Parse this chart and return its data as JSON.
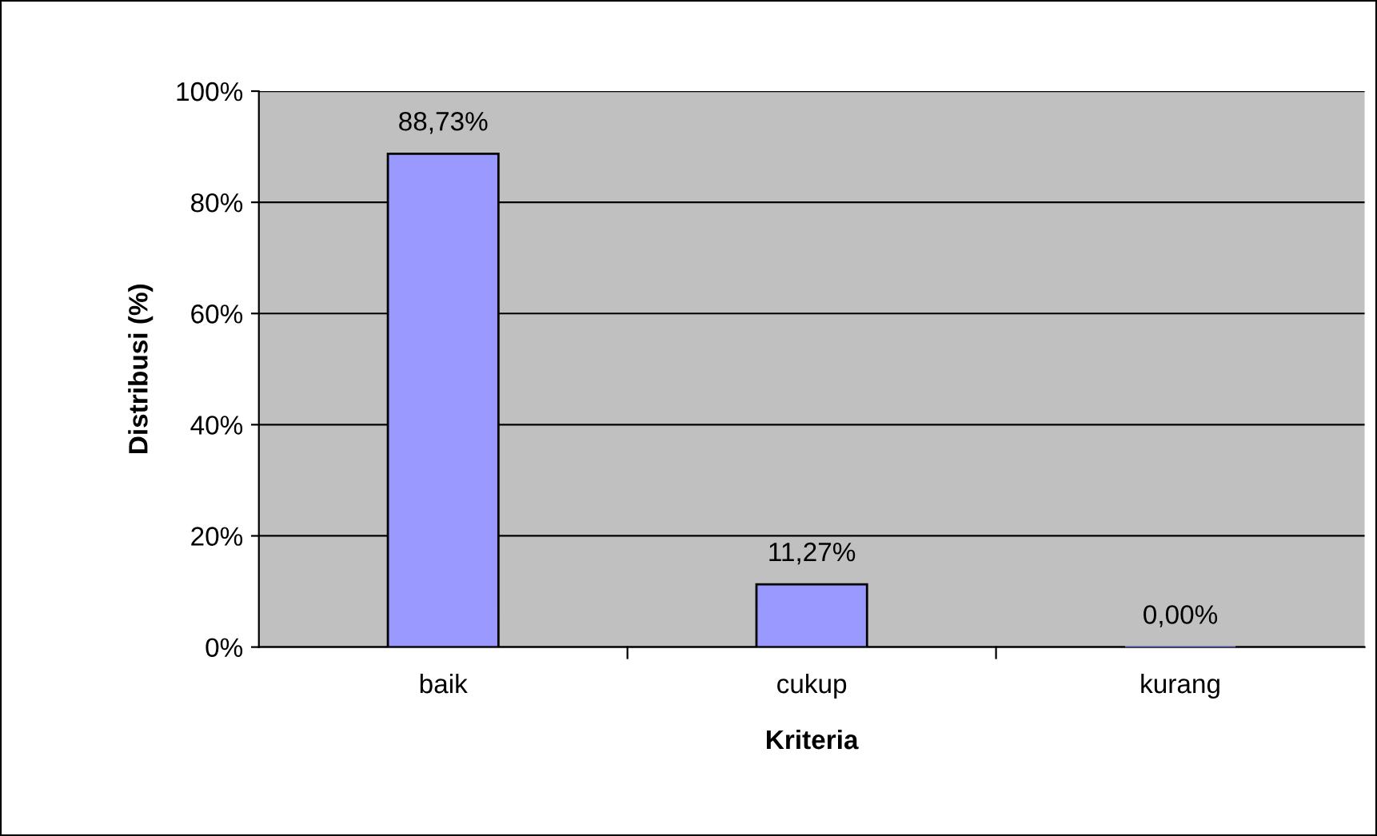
{
  "chart_data": {
    "type": "bar",
    "xlabel": "Kriteria",
    "ylabel": "Distribusi (%)",
    "categories": [
      "baik",
      "cukup",
      "kurang"
    ],
    "values": [
      88.73,
      11.27,
      0.0
    ],
    "value_labels": [
      "88,73%",
      "11,27%",
      "0,00%"
    ],
    "color": "#9999ff",
    "ylim": [
      0,
      100
    ],
    "yticks": [
      {
        "value": 0,
        "label": "0%"
      },
      {
        "value": 20,
        "label": "20%"
      },
      {
        "value": 40,
        "label": "40%"
      },
      {
        "value": 60,
        "label": "60%"
      },
      {
        "value": 80,
        "label": "80%"
      },
      {
        "value": 100,
        "label": "100%"
      }
    ],
    "grid": "y",
    "legend": false
  }
}
